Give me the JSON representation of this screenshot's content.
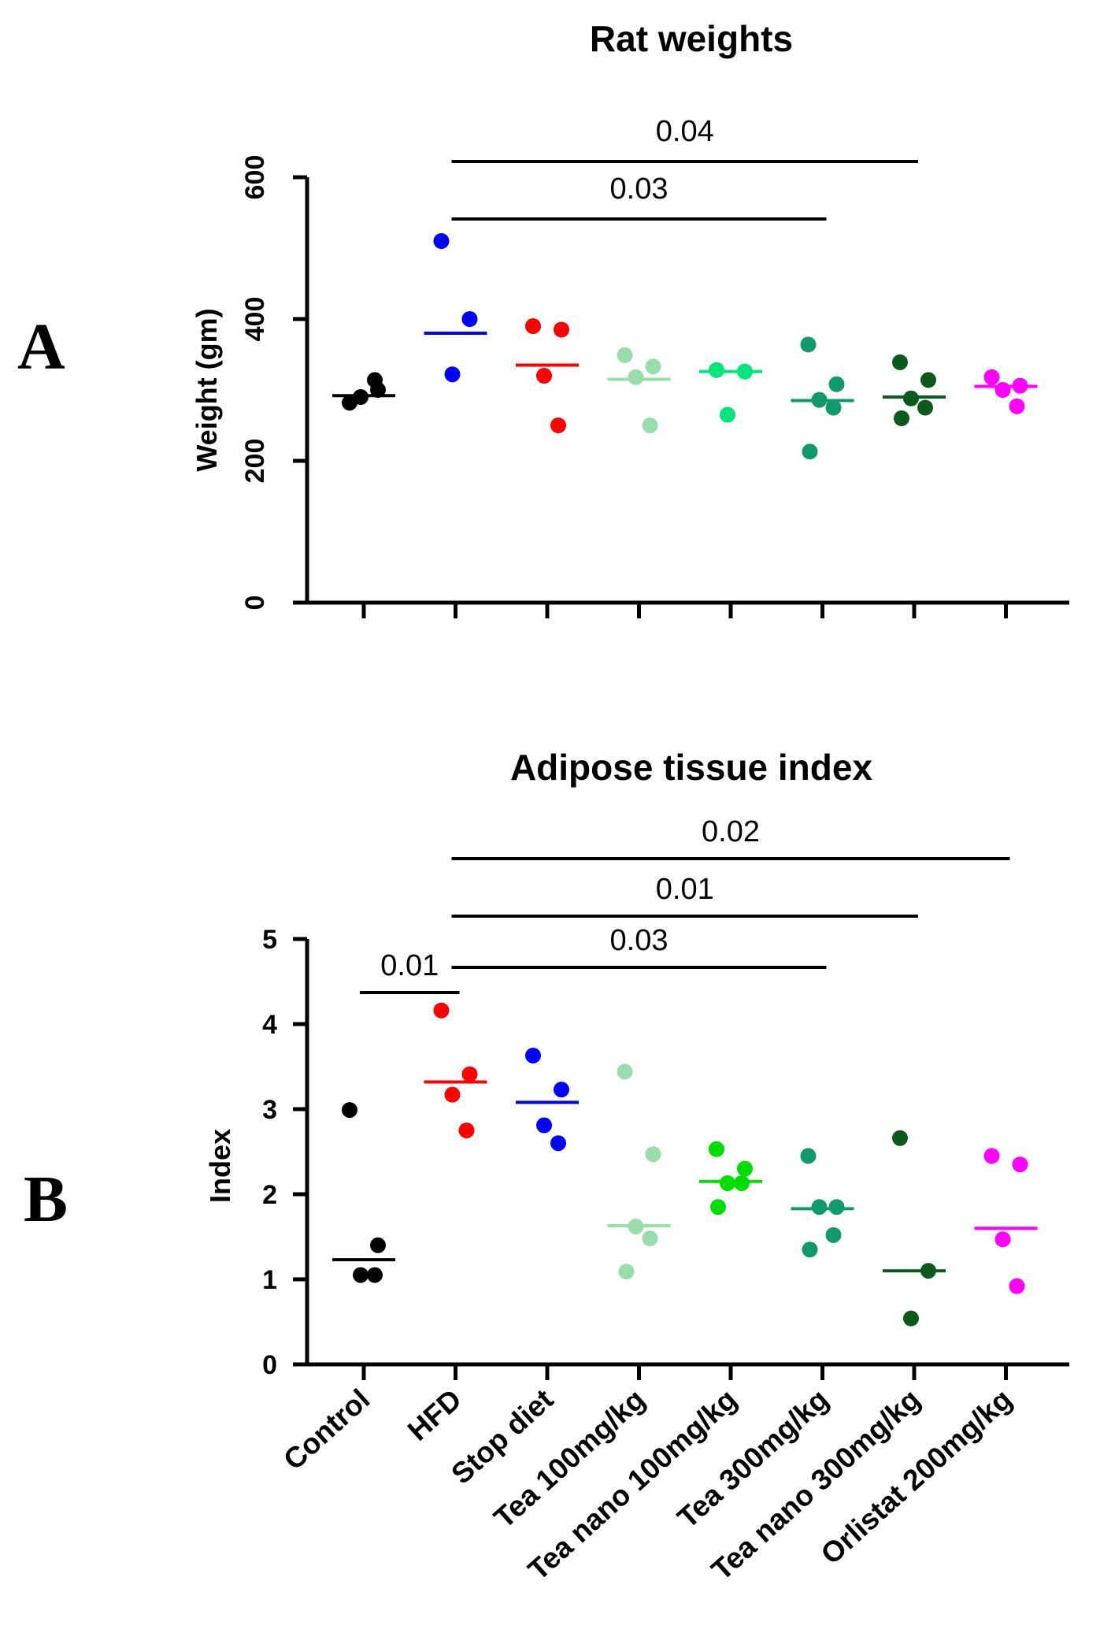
{
  "chart_data": [
    {
      "panel_label": "A",
      "type": "scatter",
      "title": "Rat weights",
      "ylabel": "Weight (gm)",
      "xlabel": "",
      "ylim": [
        0,
        600
      ],
      "yticks": [
        0,
        200,
        400,
        600
      ],
      "categories": [
        "Control",
        "HFD",
        "Stop diet",
        "Tea 100mg/kg",
        "Tea nano 100mg/kg",
        "Tea 300mg/kg",
        "Tea nano 300mg/kg",
        "Orlistat 200mg/kg"
      ],
      "show_category_labels": false,
      "series": [
        {
          "name": "Control",
          "color": "#000000",
          "points": [
            282,
            300,
            290,
            314
          ],
          "mean": 292
        },
        {
          "name": "HFD",
          "color": "#0000ff",
          "points": [
            510,
            400,
            322
          ],
          "mean": 380
        },
        {
          "name": "Stop diet",
          "color": "#ff0000",
          "points": [
            390,
            385,
            320,
            250
          ],
          "mean": 335
        },
        {
          "name": "Tea 100mg/kg",
          "color": "#99ddaa",
          "points": [
            349,
            333,
            318,
            250
          ],
          "mean": 315
        },
        {
          "name": "Tea nano 100mg/kg",
          "color": "#00e67a",
          "points": [
            328,
            326,
            265
          ],
          "mean": 326
        },
        {
          "name": "Tea 300mg/kg",
          "color": "#109a6a",
          "points": [
            364,
            308,
            286,
            275,
            213
          ],
          "mean": 285
        },
        {
          "name": "Tea nano 300mg/kg",
          "color": "#0b5a1c",
          "points": [
            339,
            314,
            288,
            275,
            260
          ],
          "mean": 290
        },
        {
          "name": "Orlistat 200mg/kg",
          "color": "#ff00ff",
          "points": [
            318,
            306,
            300,
            277
          ],
          "mean": 305
        }
      ],
      "comparisons": [
        {
          "from": "HFD",
          "to": "Tea nano 300mg/kg",
          "p": "0.04"
        },
        {
          "from": "HFD",
          "to": "Tea 300mg/kg",
          "p": "0.03"
        }
      ]
    },
    {
      "panel_label": "B",
      "type": "scatter",
      "title": "Adipose tissue index",
      "ylabel": "Index",
      "xlabel": "",
      "ylim": [
        0,
        5
      ],
      "yticks": [
        0,
        1,
        2,
        3,
        4,
        5
      ],
      "categories": [
        "Control",
        "HFD",
        "Stop diet",
        "Tea 100mg/kg",
        "Tea nano 100mg/kg",
        "Tea 300mg/kg",
        "Tea nano 300mg/kg",
        "Orlistat 200mg/kg"
      ],
      "show_category_labels": true,
      "series": [
        {
          "name": "Control",
          "color": "#000000",
          "points": [
            2.99,
            1.4,
            1.05,
            1.05
          ],
          "mean": 1.23
        },
        {
          "name": "HFD",
          "color": "#ff0000",
          "points": [
            4.16,
            3.41,
            3.17,
            2.75
          ],
          "mean": 3.32
        },
        {
          "name": "Stop diet",
          "color": "#0000ff",
          "points": [
            3.63,
            3.23,
            2.81,
            2.6
          ],
          "mean": 3.08
        },
        {
          "name": "Tea 100mg/kg",
          "color": "#99ddaa",
          "points": [
            3.44,
            2.47,
            1.62,
            1.48,
            1.09
          ],
          "mean": 1.63
        },
        {
          "name": "Tea nano 100mg/kg",
          "color": "#00dd00",
          "points": [
            2.53,
            2.3,
            2.13,
            2.13,
            1.85
          ],
          "mean": 2.15
        },
        {
          "name": "Tea 300mg/kg",
          "color": "#109a6a",
          "points": [
            2.45,
            1.85,
            1.85,
            1.52,
            1.35
          ],
          "mean": 1.83
        },
        {
          "name": "Tea nano 300mg/kg",
          "color": "#0b5a1c",
          "points": [
            2.66,
            1.1,
            0.54
          ],
          "mean": 1.1
        },
        {
          "name": "Orlistat 200mg/kg",
          "color": "#ff00ff",
          "points": [
            2.45,
            2.35,
            1.47,
            0.92
          ],
          "mean": 1.6
        }
      ],
      "comparisons": [
        {
          "from": "HFD",
          "to": "Orlistat 200mg/kg",
          "p": "0.02"
        },
        {
          "from": "HFD",
          "to": "Tea nano 300mg/kg",
          "p": "0.01"
        },
        {
          "from": "HFD",
          "to": "Tea 300mg/kg",
          "p": "0.03"
        },
        {
          "from": "Control",
          "to": "HFD",
          "p": "0.01"
        }
      ]
    }
  ]
}
